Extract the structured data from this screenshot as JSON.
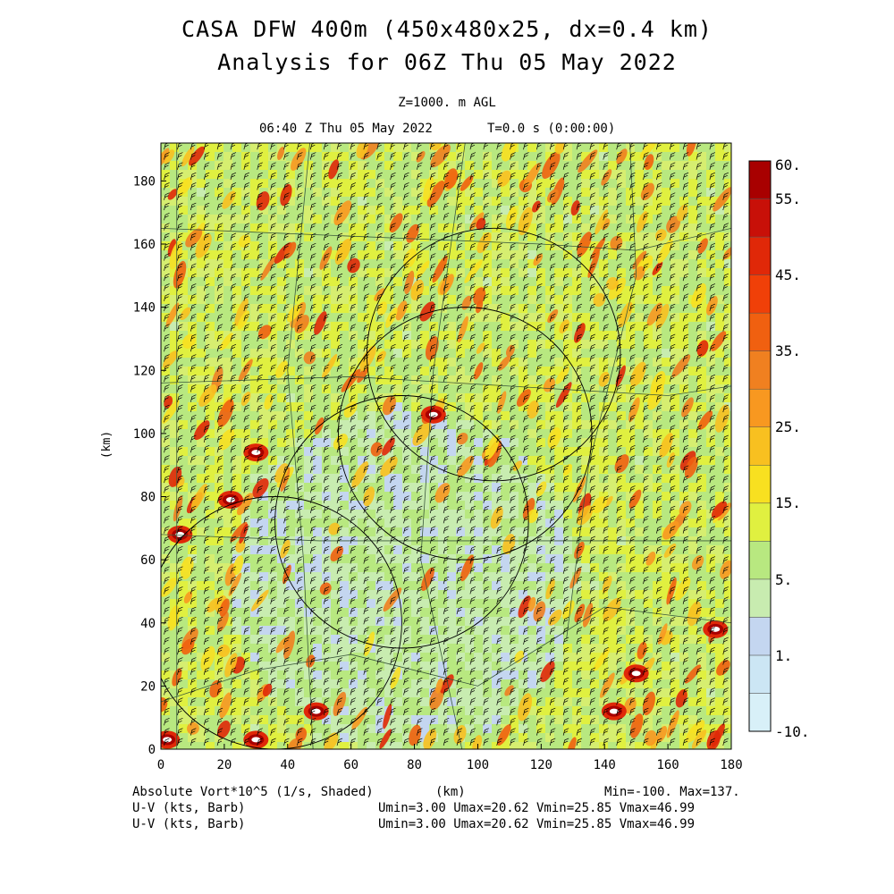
{
  "header": {
    "title_line1": "CASA DFW 400m (450x480x25, dx=0.4 km)",
    "title_line2": "Analysis for 06Z Thu 05 May 2022",
    "level": "Z=1000. m AGL",
    "valid_time": "06:40 Z Thu 05 May 2022",
    "step": "T=0.0 s (0:00:00)"
  },
  "footer": {
    "field": "Absolute Vort*10^5 (1/s, Shaded)",
    "vector1": "U-V (kts, Barb)",
    "vector2": "U-V (kts, Barb)",
    "xunit": "(km)",
    "minmax": "Min=-100. Max=137.",
    "stats1": "Umin=3.00 Umax=20.62 Vmin=25.85 Vmax=46.99",
    "stats2": "Umin=3.00 Umax=20.62 Vmin=25.85 Vmax=46.99"
  },
  "chart_data": {
    "type": "heatmap",
    "title": "CASA DFW 400m (450x480x25, dx=0.4 km)",
    "subtitle": "Analysis for 06Z Thu 05 May 2022",
    "xlabel": "(km)",
    "ylabel": "(km)",
    "xlim": [
      0,
      180
    ],
    "ylim": [
      0,
      192
    ],
    "xticks": [
      0,
      20,
      40,
      60,
      80,
      100,
      120,
      140,
      160,
      180
    ],
    "yticks": [
      0,
      20,
      40,
      60,
      80,
      100,
      120,
      140,
      160,
      180
    ],
    "colorbar": {
      "labels": [
        "60.",
        "55.",
        "45.",
        "35.",
        "25.",
        "15.",
        "5.",
        "1.",
        "-10."
      ],
      "bands": [
        "#d8f0f8",
        "#cce6f4",
        "#c4d6f0",
        "#c8ecb0",
        "#b8e880",
        "#e0f040",
        "#f8e020",
        "#f8c020",
        "#f89820",
        "#f08020",
        "#f06010",
        "#f04008",
        "#e02808",
        "#c81008",
        "#a80000"
      ]
    },
    "radar_rings": [
      {
        "center_x": 36,
        "center_y": 40,
        "radius_km": 40
      },
      {
        "center_x": 76,
        "center_y": 72,
        "radius_km": 40
      },
      {
        "center_x": 96,
        "center_y": 100,
        "radius_km": 40
      },
      {
        "center_x": 105,
        "center_y": 125,
        "radius_km": 40
      }
    ],
    "white_core_features": [
      {
        "x": 30,
        "y": 3
      },
      {
        "x": 49,
        "y": 12
      },
      {
        "x": 30,
        "y": 94
      },
      {
        "x": 22,
        "y": 79
      },
      {
        "x": 86,
        "y": 106
      },
      {
        "x": 150,
        "y": 24
      },
      {
        "x": 143,
        "y": 12
      },
      {
        "x": 175,
        "y": 38
      },
      {
        "x": 2,
        "y": 3
      },
      {
        "x": 6,
        "y": 68
      }
    ]
  }
}
